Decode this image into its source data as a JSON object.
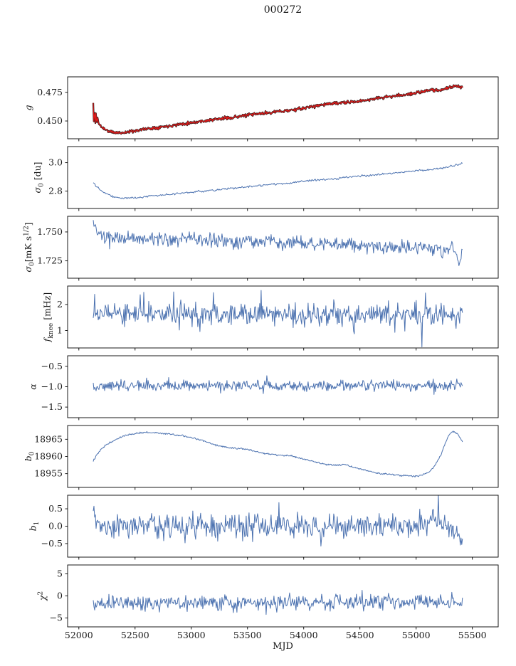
{
  "chart_data": {
    "type": "line",
    "title": "000272",
    "xlabel": "MJD",
    "x_axis": {
      "lim": [
        51900,
        55730
      ],
      "ticks": [
        52000,
        52500,
        53000,
        53500,
        54000,
        54500,
        55000,
        55500
      ],
      "tick_labels": [
        "52000",
        "52500",
        "53000",
        "53500",
        "54000",
        "54500",
        "55000",
        "55500"
      ]
    },
    "data_x_range": [
      52128,
      55412
    ],
    "style": {
      "line_color": "#4c72b0",
      "highlight_color": "#e01a1a",
      "marker_under_color": "#1c1c1c",
      "axis_color": "#000000",
      "text_color": "#1a1a1a",
      "grid": false,
      "legend": "none"
    },
    "panels": [
      {
        "id": "g",
        "ylabel_text": "g",
        "ylabel_segments": [
          {
            "t": "g",
            "s": "i"
          }
        ],
        "ylim": [
          0.4345,
          0.4885
        ],
        "ytick_values": [
          0.45,
          0.475
        ],
        "ytick_labels": [
          "0.450",
          "0.475"
        ],
        "noise": 0.0007,
        "seed": 11,
        "n_points": 700,
        "series_styles": [
          {
            "color": "#1c1c1c",
            "width": 2.3
          },
          {
            "color": "#e01a1a",
            "width": 1.15
          }
        ],
        "trend": [
          [
            52128,
            0.4655
          ],
          [
            52134,
            0.4445
          ],
          [
            52140,
            0.4625
          ],
          [
            52146,
            0.446
          ],
          [
            52152,
            0.459
          ],
          [
            52158,
            0.4475
          ],
          [
            52166,
            0.4525
          ],
          [
            52180,
            0.447
          ],
          [
            52210,
            0.4442
          ],
          [
            52260,
            0.4412
          ],
          [
            52320,
            0.4398
          ],
          [
            52400,
            0.4398
          ],
          [
            52480,
            0.4412
          ],
          [
            52560,
            0.4425
          ],
          [
            52650,
            0.4438
          ],
          [
            52760,
            0.4452
          ],
          [
            52900,
            0.4472
          ],
          [
            53050,
            0.4492
          ],
          [
            53200,
            0.4512
          ],
          [
            53350,
            0.453
          ],
          [
            53500,
            0.455
          ],
          [
            53650,
            0.4568
          ],
          [
            53800,
            0.4585
          ],
          [
            53950,
            0.4602
          ],
          [
            54100,
            0.463
          ],
          [
            54200,
            0.4648
          ],
          [
            54300,
            0.4655
          ],
          [
            54400,
            0.4662
          ],
          [
            54500,
            0.4672
          ],
          [
            54600,
            0.469
          ],
          [
            54700,
            0.4705
          ],
          [
            54800,
            0.4716
          ],
          [
            54900,
            0.473
          ],
          [
            55000,
            0.4745
          ],
          [
            55080,
            0.4758
          ],
          [
            55150,
            0.4775
          ],
          [
            55220,
            0.4768
          ],
          [
            55280,
            0.4788
          ],
          [
            55340,
            0.4805
          ],
          [
            55380,
            0.4795
          ],
          [
            55412,
            0.4792
          ]
        ]
      },
      {
        "id": "sigma0-du",
        "ylabel_text": "σ0 [du]",
        "ylabel_segments": [
          {
            "t": "σ",
            "s": "i"
          },
          {
            "t": "0",
            "s": "sub"
          },
          {
            "t": " [du]",
            "s": ""
          }
        ],
        "ylim": [
          2.678,
          3.113
        ],
        "ytick_values": [
          2.8,
          3.0
        ],
        "ytick_labels": [
          "2.8",
          "3.0"
        ],
        "noise": 0.0035,
        "seed": 22,
        "n_points": 450,
        "trend": [
          [
            52128,
            2.862
          ],
          [
            52160,
            2.832
          ],
          [
            52200,
            2.806
          ],
          [
            52250,
            2.782
          ],
          [
            52300,
            2.763
          ],
          [
            52360,
            2.752
          ],
          [
            52420,
            2.75
          ],
          [
            52500,
            2.754
          ],
          [
            52600,
            2.762
          ],
          [
            52700,
            2.77
          ],
          [
            52850,
            2.78
          ],
          [
            53000,
            2.792
          ],
          [
            53150,
            2.803
          ],
          [
            53300,
            2.815
          ],
          [
            53450,
            2.826
          ],
          [
            53600,
            2.838
          ],
          [
            53750,
            2.849
          ],
          [
            53900,
            2.86
          ],
          [
            54050,
            2.872
          ],
          [
            54200,
            2.882
          ],
          [
            54350,
            2.893
          ],
          [
            54500,
            2.906
          ],
          [
            54650,
            2.917
          ],
          [
            54800,
            2.927
          ],
          [
            54950,
            2.938
          ],
          [
            55100,
            2.95
          ],
          [
            55200,
            2.958
          ],
          [
            55300,
            2.972
          ],
          [
            55380,
            2.988
          ],
          [
            55412,
            2.997
          ]
        ]
      },
      {
        "id": "sigma0-mks",
        "ylabel_text": "σ0[mK s1/2]",
        "ylabel_segments": [
          {
            "t": "σ",
            "s": "i"
          },
          {
            "t": "0",
            "s": "sub"
          },
          {
            "t": "[mK s",
            "s": ""
          },
          {
            "t": "1/2",
            "s": "sup"
          },
          {
            "t": "]",
            "s": ""
          }
        ],
        "ylim": [
          1.71,
          1.7635
        ],
        "ytick_values": [
          1.725,
          1.75
        ],
        "ytick_labels": [
          "1.725",
          "1.750"
        ],
        "noise": 0.003,
        "seed": 33,
        "n_points": 520,
        "trend": [
          [
            52128,
            1.7578
          ],
          [
            52150,
            1.752
          ],
          [
            52180,
            1.7468
          ],
          [
            52220,
            1.7448
          ],
          [
            52280,
            1.7432
          ],
          [
            52340,
            1.7452
          ],
          [
            52400,
            1.744
          ],
          [
            52460,
            1.7458
          ],
          [
            52540,
            1.7436
          ],
          [
            52620,
            1.7446
          ],
          [
            52700,
            1.7428
          ],
          [
            52800,
            1.7438
          ],
          [
            52900,
            1.7425
          ],
          [
            53000,
            1.7442
          ],
          [
            53100,
            1.7427
          ],
          [
            53200,
            1.7418
          ],
          [
            53300,
            1.7432
          ],
          [
            53400,
            1.7408
          ],
          [
            53500,
            1.7426
          ],
          [
            53600,
            1.7412
          ],
          [
            53700,
            1.7424
          ],
          [
            53800,
            1.7398
          ],
          [
            53900,
            1.7416
          ],
          [
            54000,
            1.7404
          ],
          [
            54100,
            1.7392
          ],
          [
            54200,
            1.7404
          ],
          [
            54300,
            1.7386
          ],
          [
            54400,
            1.7396
          ],
          [
            54500,
            1.7376
          ],
          [
            54600,
            1.7384
          ],
          [
            54700,
            1.7366
          ],
          [
            54800,
            1.7376
          ],
          [
            54900,
            1.736
          ],
          [
            55000,
            1.7368
          ],
          [
            55100,
            1.7372
          ],
          [
            55180,
            1.7352
          ],
          [
            55260,
            1.734
          ],
          [
            55320,
            1.7362
          ],
          [
            55360,
            1.733
          ],
          [
            55390,
            1.7248
          ],
          [
            55412,
            1.73
          ]
        ]
      },
      {
        "id": "fknee",
        "ylabel_text": "fknee [mHz]",
        "ylabel_segments": [
          {
            "t": "f",
            "s": "i"
          },
          {
            "t": "knee",
            "s": "sub"
          },
          {
            "t": " [mHz]",
            "s": ""
          }
        ],
        "ylim": [
          0.33,
          2.71
        ],
        "ytick_values": [
          1,
          2
        ],
        "ytick_labels": [
          "1",
          "2"
        ],
        "noise": 0.21,
        "spike_prob": 0.04,
        "spike_amp": 0.5,
        "seed": 44,
        "n_points": 520,
        "trend": [
          [
            52128,
            1.66
          ],
          [
            53000,
            1.64
          ],
          [
            54000,
            1.62
          ],
          [
            55412,
            1.6
          ]
        ]
      },
      {
        "id": "alpha",
        "ylabel_text": "α",
        "ylabel_segments": [
          {
            "t": "α",
            "s": "i"
          }
        ],
        "ylim": [
          -1.76,
          -0.24
        ],
        "ytick_values": [
          -1.5,
          -1.0,
          -0.5
        ],
        "ytick_labels": [
          "−1.5",
          "−1.0",
          "−0.5"
        ],
        "noise": 0.065,
        "spike_prob": 0.03,
        "spike_amp": 0.15,
        "seed": 55,
        "n_points": 520,
        "trend": [
          [
            52128,
            -0.975
          ],
          [
            55412,
            -0.975
          ]
        ]
      },
      {
        "id": "b0",
        "ylabel_text": "b0",
        "ylabel_segments": [
          {
            "t": "b",
            "s": "i"
          },
          {
            "t": "0",
            "s": "sub"
          }
        ],
        "ylim": [
          18951,
          18969
        ],
        "ytick_values": [
          18955,
          18960,
          18965
        ],
        "ytick_labels": [
          "18955",
          "18960",
          "18965"
        ],
        "noise": 0.12,
        "seed": 66,
        "n_points": 600,
        "trend": [
          [
            52128,
            18958.8
          ],
          [
            52180,
            18961.5
          ],
          [
            52250,
            18963.6
          ],
          [
            52330,
            18965.0
          ],
          [
            52420,
            18966.2
          ],
          [
            52520,
            18966.8
          ],
          [
            52620,
            18967.0
          ],
          [
            52720,
            18966.8
          ],
          [
            52820,
            18966.5
          ],
          [
            52920,
            18966.0
          ],
          [
            53020,
            18965.3
          ],
          [
            53120,
            18964.4
          ],
          [
            53220,
            18963.3
          ],
          [
            53300,
            18962.7
          ],
          [
            53400,
            18962.4
          ],
          [
            53500,
            18962.1
          ],
          [
            53600,
            18961.2
          ],
          [
            53700,
            18960.6
          ],
          [
            53800,
            18960.4
          ],
          [
            53900,
            18960.1
          ],
          [
            54000,
            18959.2
          ],
          [
            54100,
            18958.4
          ],
          [
            54200,
            18957.7
          ],
          [
            54300,
            18957.4
          ],
          [
            54360,
            18957.7
          ],
          [
            54440,
            18956.9
          ],
          [
            54520,
            18956.2
          ],
          [
            54620,
            18955.4
          ],
          [
            54720,
            18954.9
          ],
          [
            54820,
            18954.6
          ],
          [
            54920,
            18954.4
          ],
          [
            55000,
            18954.3
          ],
          [
            55060,
            18954.6
          ],
          [
            55120,
            18955.6
          ],
          [
            55170,
            18957.5
          ],
          [
            55220,
            18960.5
          ],
          [
            55260,
            18964.0
          ],
          [
            55300,
            18966.6
          ],
          [
            55330,
            18967.3
          ],
          [
            55360,
            18966.8
          ],
          [
            55390,
            18965.5
          ],
          [
            55412,
            18964.2
          ]
        ]
      },
      {
        "id": "b1",
        "ylabel_text": "b1",
        "ylabel_segments": [
          {
            "t": "b",
            "s": "i"
          },
          {
            "t": "1",
            "s": "sub"
          }
        ],
        "ylim": [
          -0.89,
          0.89
        ],
        "ytick_values": [
          -0.5,
          0.0,
          0.5
        ],
        "ytick_labels": [
          "−0.5",
          "0.0",
          "0.5"
        ],
        "noise": 0.17,
        "spike_prob": 0.05,
        "spike_amp": 0.3,
        "seed": 77,
        "n_points": 520,
        "trend": [
          [
            52128,
            0.55
          ],
          [
            52150,
            0.25
          ],
          [
            52190,
            0.05
          ],
          [
            52260,
            0.0
          ],
          [
            54900,
            0.0
          ],
          [
            55050,
            0.05
          ],
          [
            55150,
            0.18
          ],
          [
            55250,
            0.15
          ],
          [
            55330,
            -0.05
          ],
          [
            55380,
            -0.3
          ],
          [
            55412,
            -0.4
          ]
        ]
      },
      {
        "id": "chi2",
        "ylabel_text": "χ2",
        "ylabel_segments": [
          {
            "t": "χ",
            "s": "i"
          },
          {
            "t": "2",
            "s": "sup"
          }
        ],
        "ylim": [
          -7,
          7
        ],
        "ytick_values": [
          -5,
          0,
          5
        ],
        "ytick_labels": [
          "−5",
          "0",
          "5"
        ],
        "noise": 0.85,
        "spike_prob": 0.025,
        "spike_amp": 1.6,
        "seed": 88,
        "n_points": 520,
        "trend": [
          [
            52128,
            -1.7
          ],
          [
            53000,
            -1.6
          ],
          [
            54000,
            -1.4
          ],
          [
            55000,
            -1.3
          ],
          [
            55412,
            -1.4
          ]
        ]
      }
    ]
  }
}
